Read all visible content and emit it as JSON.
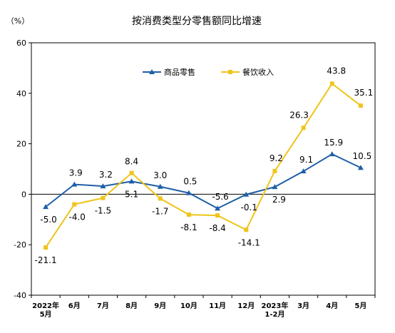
{
  "chart_data": {
    "type": "line",
    "title": "按消费类型分零售额同比增速",
    "ylabel": "（%）",
    "xlabel": "",
    "ylim": [
      -40,
      60
    ],
    "yticks": [
      "-40",
      "-20",
      "0",
      "20",
      "40",
      "60"
    ],
    "grid": false,
    "legend_position": "top-center",
    "categories": [
      [
        "2022年",
        "5月"
      ],
      [
        "6月"
      ],
      [
        "7月"
      ],
      [
        "8月"
      ],
      [
        "9月"
      ],
      [
        "10月"
      ],
      [
        "11月"
      ],
      [
        "12月"
      ],
      [
        "2023年",
        "1-2月"
      ],
      [
        "3月"
      ],
      [
        "4月"
      ],
      [
        "5月"
      ]
    ],
    "series": [
      {
        "name": "商品零售",
        "color": "#1f5fa8",
        "marker": "triangle",
        "values": [
          -5.0,
          3.9,
          3.2,
          5.1,
          3.0,
          0.5,
          -5.6,
          -0.1,
          2.9,
          9.1,
          15.9,
          10.5
        ],
        "labels": [
          "-5.0",
          "3.9",
          "3.2",
          "5.1",
          "3.0",
          "0.5",
          "-5.6",
          "-0.1",
          "2.9",
          "9.1",
          "15.9",
          "10.5"
        ]
      },
      {
        "name": "餐饮收入",
        "color": "#f0c419",
        "marker": "square",
        "values": [
          -21.1,
          -4.0,
          -1.5,
          8.4,
          -1.7,
          -8.1,
          -8.4,
          -14.1,
          9.2,
          26.3,
          43.8,
          35.1
        ],
        "labels": [
          "-21.1",
          "-4.0",
          "-1.5",
          "8.4",
          "-1.7",
          "-8.1",
          "-8.4",
          "-14.1",
          "9.2",
          "26.3",
          "43.8",
          "35.1"
        ]
      }
    ]
  }
}
